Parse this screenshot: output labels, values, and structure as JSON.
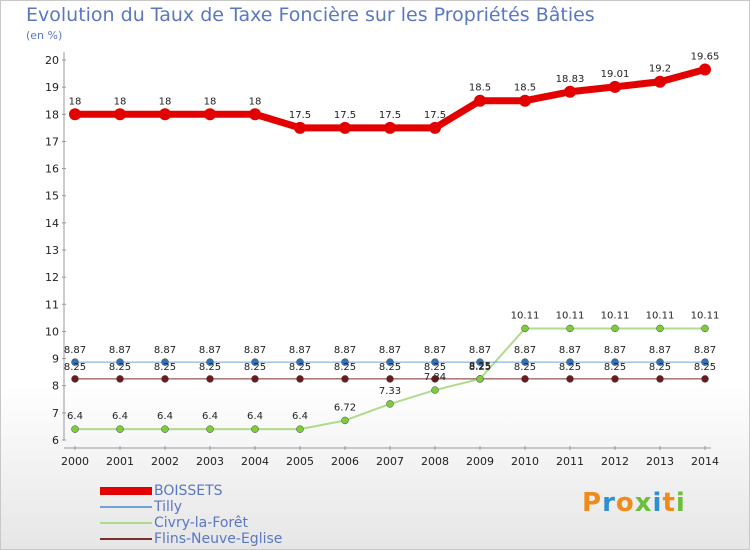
{
  "header": {
    "title": "Evolution du Taux de Taxe Foncière sur les Propriétés Bâties",
    "unit": "(en %)"
  },
  "logo": {
    "text": "Proxiti",
    "colors": [
      "#f08a1a",
      "#2f8fd3",
      "#f08a1a",
      "#6bbf3a",
      "#2f8fd3",
      "#f08a1a",
      "#6bbf3a"
    ]
  },
  "chart_data": {
    "type": "line",
    "title": "Evolution du Taux de Taxe Foncière sur les Propriétés Bâties",
    "ylabel": "(en %)",
    "xlabel": "",
    "x": [
      2000,
      2001,
      2002,
      2003,
      2004,
      2005,
      2006,
      2007,
      2008,
      2009,
      2010,
      2011,
      2012,
      2013,
      2014
    ],
    "y_ticks": [
      6,
      7,
      8,
      9,
      10,
      11,
      12,
      13,
      14,
      15,
      16,
      17,
      18,
      19,
      20
    ],
    "ylim": [
      6,
      20
    ],
    "grid": false,
    "legend_position": "bottom-left",
    "series": [
      {
        "name": "BOISSETS",
        "color": "#e30000",
        "marker_color": "#e30000",
        "values": [
          18,
          18,
          18,
          18,
          18,
          17.5,
          17.5,
          17.5,
          17.5,
          18.5,
          18.5,
          18.83,
          19.01,
          19.2,
          19.65
        ],
        "labels": [
          "18",
          "18",
          "18",
          "18",
          "18",
          "17.5",
          "17.5",
          "17.5",
          "17.5",
          "18.5",
          "18.5",
          "18.83",
          "19.01",
          "19.2",
          "19.65"
        ]
      },
      {
        "name": "Tilly",
        "color": "#6fa3d6",
        "marker_color": "#2f72b8",
        "values": [
          8.87,
          8.87,
          8.87,
          8.87,
          8.87,
          8.87,
          8.87,
          8.87,
          8.87,
          8.87,
          8.87,
          8.87,
          8.87,
          8.87,
          8.87
        ],
        "labels": [
          "8.87",
          "8.87",
          "8.87",
          "8.87",
          "8.87",
          "8.87",
          "8.87",
          "8.87",
          "8.87",
          "8.87",
          "8.87",
          "8.87",
          "8.87",
          "8.87",
          "8.87"
        ]
      },
      {
        "name": "Civry-la-Forêt",
        "color": "#aedc8c",
        "marker_color": "#7ccc3c",
        "values": [
          6.4,
          6.4,
          6.4,
          6.4,
          6.4,
          6.4,
          6.72,
          7.33,
          7.84,
          8.25,
          10.11,
          10.11,
          10.11,
          10.11,
          10.11
        ],
        "labels": [
          "6.4",
          "6.4",
          "6.4",
          "6.4",
          "6.4",
          "6.4",
          "6.72",
          "7.33",
          "7.84",
          "8.25",
          "10.11",
          "10.11",
          "10.11",
          "10.11",
          "10.11"
        ]
      },
      {
        "name": "Flins-Neuve-Eglise",
        "color": "#7a2e2e",
        "marker_color": "#6e1a1a",
        "values": [
          8.25,
          8.25,
          8.25,
          8.25,
          8.25,
          8.25,
          8.25,
          8.25,
          8.25,
          8.25,
          8.25,
          8.25,
          8.25,
          8.25,
          8.25
        ],
        "labels": [
          "8.25",
          "8.25",
          "8.25",
          "8.25",
          "8.25",
          "8.25",
          "8.25",
          "8.25",
          "8.25",
          "8.25",
          "8.25",
          "8.25",
          "8.25",
          "8.25",
          "8.25"
        ]
      }
    ]
  }
}
